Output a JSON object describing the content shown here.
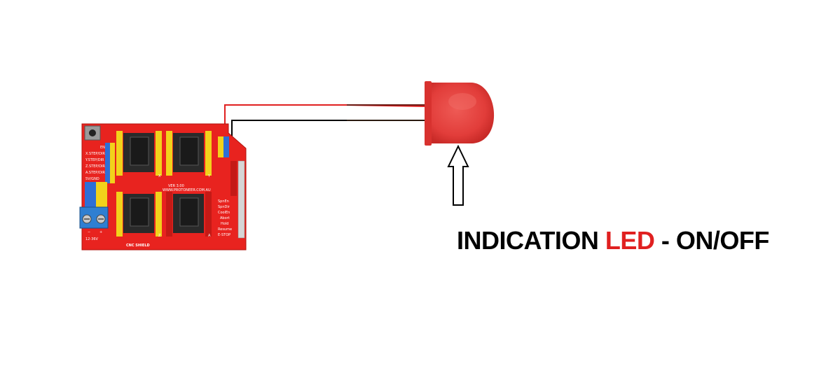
{
  "caption": {
    "part1": "INDICATION ",
    "part2": "LED",
    "part3": " - ON/OFF"
  },
  "board": {
    "name": "CNC SHIELD",
    "version": "VER 3.00",
    "site": "WWW.PROTONEER.COM.AU",
    "left_labels": [
      "EN/GND",
      "X.STEP/DIR",
      "Y.STEP/DIR",
      "Z.STEP/DIR",
      "A.STEP/DIR",
      "5V/GND"
    ],
    "right_labels": [
      "SpnEn",
      "SpnDir",
      "CoolEn",
      "Abort",
      "Hold",
      "Resume",
      "E-STOP"
    ],
    "axis_labels": [
      "X",
      "Y",
      "Z",
      "A"
    ],
    "power_label": "12-36V",
    "power_terminals": [
      "−",
      "+"
    ]
  },
  "colors": {
    "board": "#e8231f",
    "led": "#e23d3a",
    "wire_positive": "#e02020",
    "wire_negative": "#000000",
    "caption_accent": "#e02020"
  },
  "icons": {
    "arrow": "up-arrow-outline-icon",
    "led": "led-icon"
  }
}
